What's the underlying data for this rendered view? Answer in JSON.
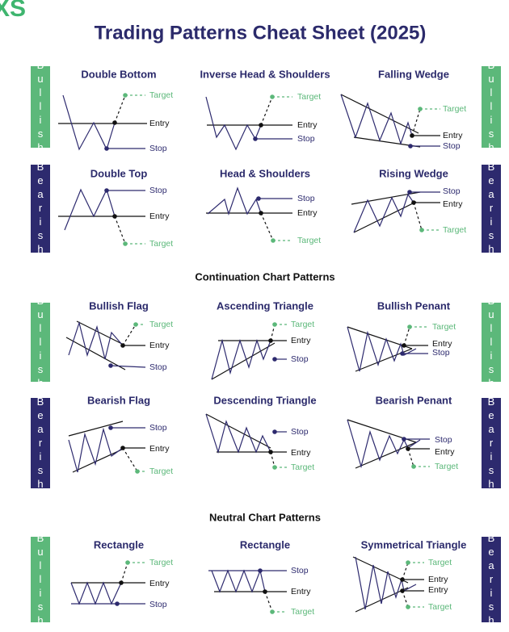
{
  "logo": "XS",
  "title": "Trading Patterns Cheat Sheet (2025)",
  "section_headings": [
    "Continuation Chart Patterns",
    "Neutral Chart Patterns"
  ],
  "rows": [
    {
      "left": "Bullish",
      "right": "Bullish",
      "patterns": [
        {
          "title": "Double Bottom",
          "labels": [
            "Target",
            "Entry",
            "Stop"
          ]
        },
        {
          "title": "Inverse Head & Shoulders",
          "labels": [
            "Target",
            "Entry",
            "Stop"
          ]
        },
        {
          "title": "Falling Wedge",
          "labels": [
            "Target",
            "Entry",
            "Stop"
          ]
        }
      ]
    },
    {
      "left": "Bearish",
      "right": "Bearish",
      "patterns": [
        {
          "title": "Double Top",
          "labels": [
            "Stop",
            "Entry",
            "Target"
          ]
        },
        {
          "title": "Head & Shoulders",
          "labels": [
            "Stop",
            "Entry",
            "Target"
          ]
        },
        {
          "title": "Rising Wedge",
          "labels": [
            "Stop",
            "Entry",
            "Target"
          ]
        }
      ]
    },
    {
      "left": "Bullish",
      "right": "Bullish",
      "patterns": [
        {
          "title": "Bullish Flag",
          "labels": [
            "Target",
            "Entry",
            "Stop"
          ]
        },
        {
          "title": "Ascending Triangle",
          "labels": [
            "Target",
            "Entry",
            "Stop"
          ]
        },
        {
          "title": "Bullish Penant",
          "labels": [
            "Target",
            "Entry",
            "Stop"
          ]
        }
      ]
    },
    {
      "left": "Bearish",
      "right": "Bearish",
      "patterns": [
        {
          "title": "Bearish Flag",
          "labels": [
            "Stop",
            "Entry",
            "Target"
          ]
        },
        {
          "title": "Descending Triangle",
          "labels": [
            "Stop",
            "Entry",
            "Target"
          ]
        },
        {
          "title": "Bearish Penant",
          "labels": [
            "Stop",
            "Entry",
            "Target"
          ]
        }
      ]
    },
    {
      "left": "Bullish",
      "right": "Bearish",
      "patterns": [
        {
          "title": "Rectangle",
          "labels": [
            "Target",
            "Entry",
            "Stop"
          ]
        },
        {
          "title": "Rectangle",
          "labels": [
            "Stop",
            "Entry",
            "Target"
          ]
        },
        {
          "title": "Symmetrical Triangle",
          "labels": [
            "Target",
            "Entry",
            "Entry",
            "Target"
          ]
        }
      ]
    }
  ]
}
